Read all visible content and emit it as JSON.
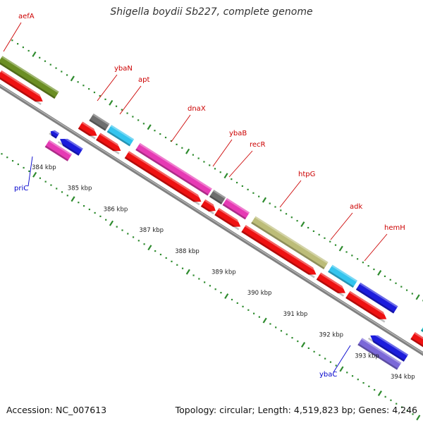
{
  "title": "Shigella boydii Sb227, complete genome",
  "footer": {
    "accession": "Accession: NC_007613",
    "topology": "Topology: circular; Length: 4,519,823 bp; Genes: 4,246"
  },
  "colors": {
    "label_forward": "#cc0000",
    "label_reverse": "#0000cc",
    "backbone": "#808080",
    "tick": "#2e8b2e"
  },
  "genes": [
    {
      "name": "aefA",
      "strand": "forward",
      "track": "outer",
      "color": "#6b8e23",
      "label": true
    },
    {
      "name": "ybaN",
      "strand": "forward",
      "track": "outer",
      "color": "#6e6e6e",
      "label": true
    },
    {
      "name": "apt",
      "strand": "forward",
      "track": "outer",
      "color": "#33c4ee",
      "label": true
    },
    {
      "name": "dnaX",
      "strand": "forward",
      "track": "outer",
      "color": "#e63ab4",
      "label": true
    },
    {
      "name": "ybaB",
      "strand": "forward",
      "track": "outer",
      "color": "#6e6e6e",
      "label": true
    },
    {
      "name": "recR",
      "strand": "forward",
      "track": "outer",
      "color": "#e63ab4",
      "label": true
    },
    {
      "name": "htpG",
      "strand": "forward",
      "track": "outer",
      "color": "#bcbc78",
      "label": true
    },
    {
      "name": "adk",
      "strand": "forward",
      "track": "outer",
      "color": "#33c4ee",
      "label": true
    },
    {
      "name": "hemH",
      "strand": "forward",
      "track": "outer",
      "color": "#1c1cdc",
      "label": true
    },
    {
      "name": "priC",
      "strand": "reverse",
      "track": "inner",
      "color": "#e63ab4",
      "label": true
    },
    {
      "name": "ybaC",
      "strand": "reverse",
      "track": "inner",
      "color": "#7b68d8",
      "label": true
    }
  ],
  "ticks": [
    "384 kbp",
    "385 kbp",
    "386 kbp",
    "387 kbp",
    "388 kbp",
    "389 kbp",
    "390 kbp",
    "391 kbp",
    "392 kbp",
    "393 kbp",
    "394 kbp"
  ]
}
